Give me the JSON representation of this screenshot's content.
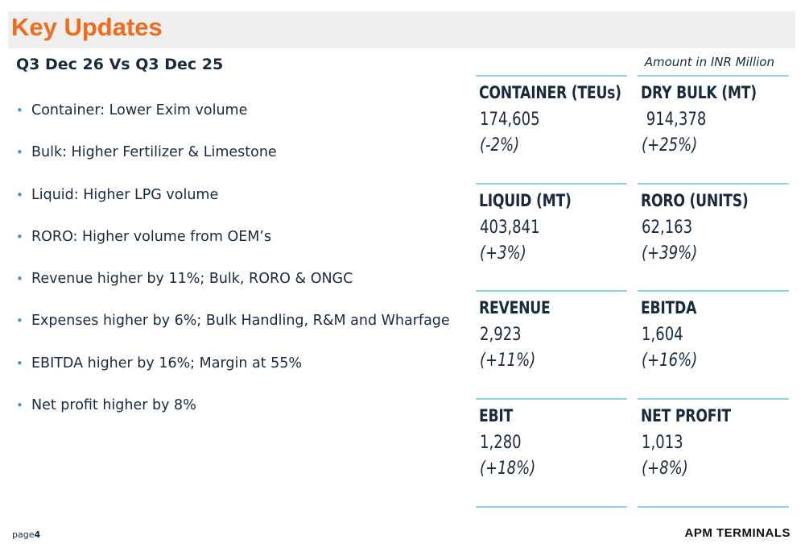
{
  "header": {
    "title": "Key Updates",
    "subtitle": "Q3 Dec 26 Vs Q3 Dec 25",
    "units_note": "Amount in INR Million"
  },
  "bullets": [
    "Container: Lower Exim volume",
    "Bulk: Higher Fertilizer & Limestone",
    "Liquid: Higher LPG volume",
    "RORO: Higher volume from OEM’s",
    "Revenue higher by 11%; Bulk, RORO & ONGC",
    "Expenses higher by 6%; Bulk Handling, R&M and Wharfage",
    "EBITDA higher by 16%; Margin at 55%",
    "Net profit higher by 8%"
  ],
  "metrics": [
    {
      "label": "CONTAINER (TEUs)",
      "value": "174,605",
      "change": "(-2%)"
    },
    {
      "label": "DRY BULK (MT)",
      "value": " 914,378",
      "change": "(+25%)"
    },
    {
      "label": "LIQUID (MT)",
      "value": "403,841",
      "change": "(+3%)"
    },
    {
      "label": "RORO (UNITS)",
      "value": "62,163",
      "change": "(+39%)"
    },
    {
      "label": "REVENUE",
      "value": "2,923",
      "change": "(+11%)"
    },
    {
      "label": "EBITDA",
      "value": "1,604",
      "change": "(+16%)"
    },
    {
      "label": "EBIT",
      "value": "1,280",
      "change": "(+18%)"
    },
    {
      "label": "NET PROFIT",
      "value": "1,013",
      "change": "(+8%)"
    }
  ],
  "footer": {
    "page_prefix": "page",
    "page_number": "4",
    "brand": "APM TERMINALS"
  },
  "colors": {
    "title": "#f26a1b",
    "text": "#1a2a3e",
    "rule": "#8fd3e0",
    "bullet": "#4a90c8"
  }
}
